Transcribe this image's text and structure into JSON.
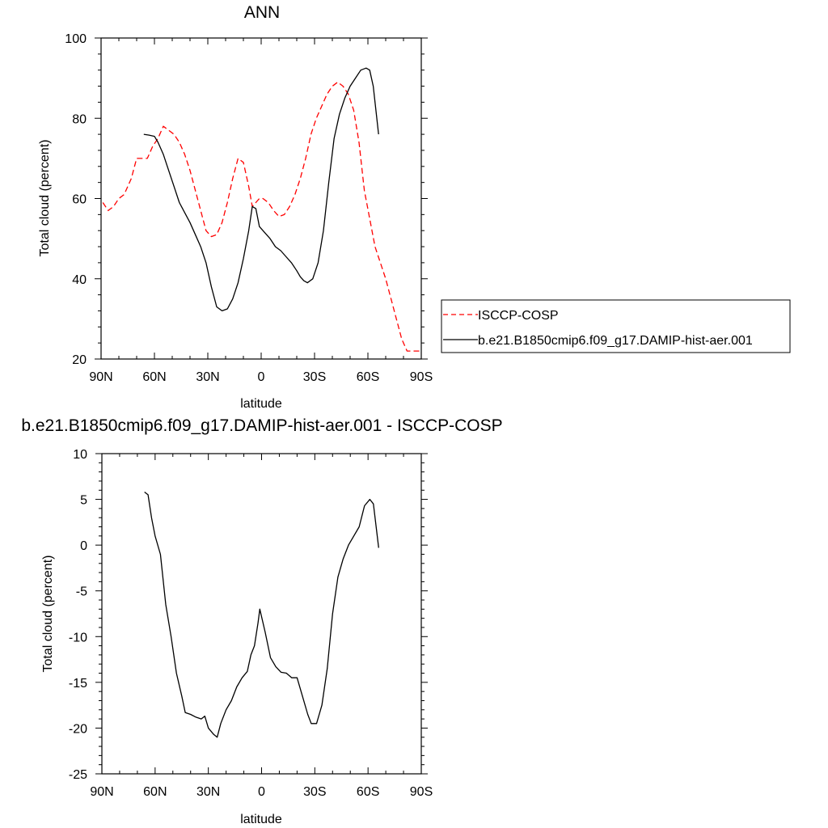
{
  "chart_data": [
    {
      "type": "line",
      "title": "ANN",
      "xlabel": "latitude",
      "ylabel": "Total cloud (percent)",
      "xlim": [
        90,
        -90
      ],
      "ylim": [
        20,
        100
      ],
      "x_ticks": [
        90,
        60,
        30,
        0,
        -30,
        -60,
        -90
      ],
      "x_tick_labels": [
        "90N",
        "60N",
        "30N",
        "0",
        "30S",
        "60S",
        "90S"
      ],
      "y_ticks": [
        20,
        40,
        60,
        80,
        100
      ],
      "y_tick_labels": [
        "20",
        "40",
        "60",
        "80",
        "100"
      ],
      "legend_position": "right",
      "series": [
        {
          "name": "ISCCP-COSP",
          "color": "#ff0000",
          "dash": "dashed",
          "x": [
            89,
            86,
            83,
            80,
            77,
            73,
            70,
            67,
            64,
            61,
            58,
            55,
            52,
            49,
            46,
            43,
            40,
            37,
            34,
            31,
            28,
            25,
            22,
            19,
            16,
            13,
            10,
            7,
            5,
            3,
            1,
            -1,
            -4,
            -7,
            -10,
            -13,
            -16,
            -19,
            -22,
            -25,
            -28,
            -31,
            -34,
            -37,
            -40,
            -43,
            -46,
            -49,
            -52,
            -55,
            -58,
            -61,
            -64,
            -67,
            -70,
            -73,
            -76,
            -79,
            -82,
            -85,
            -88,
            -90
          ],
          "y": [
            59,
            57,
            58,
            60,
            61,
            65,
            70,
            70,
            70,
            73,
            75,
            78,
            77,
            76,
            74,
            71,
            67,
            62,
            57,
            52,
            50.5,
            51,
            54,
            59,
            65,
            70,
            69,
            63,
            58,
            59,
            60,
            60,
            59,
            57,
            55.5,
            56,
            58,
            61,
            65,
            70,
            76,
            80,
            83,
            86,
            88,
            89,
            88,
            86,
            82,
            74,
            62,
            55,
            48,
            44,
            40,
            35,
            30,
            25,
            22,
            22,
            22,
            22
          ]
        },
        {
          "name": "b.e21.B1850cmip6.f09_g17.DAMIP-hist-aer.001",
          "color": "#000000",
          "dash": "solid",
          "x": [
            66,
            63,
            60,
            58,
            55,
            52,
            49,
            46,
            43,
            40,
            37,
            34,
            31,
            28,
            25,
            22,
            19,
            16,
            13,
            10,
            7,
            5,
            3,
            1,
            -2,
            -5,
            -8,
            -11,
            -14,
            -17,
            -20,
            -22,
            -24,
            -26,
            -29,
            -32,
            -35,
            -38,
            -41,
            -44,
            -47,
            -50,
            -53,
            -56,
            -59,
            -61,
            -63,
            -66
          ],
          "y": [
            76,
            75.8,
            75.5,
            74,
            71,
            67,
            63,
            59,
            56.5,
            54,
            51,
            48,
            44,
            38,
            33,
            32,
            32.5,
            35,
            39,
            45,
            52,
            58,
            57.5,
            53,
            51.5,
            50,
            48,
            47,
            45.5,
            44,
            42,
            40.5,
            39.5,
            39,
            40,
            44,
            52,
            64,
            75,
            81,
            85,
            88,
            90,
            92,
            92.5,
            92,
            88,
            76
          ]
        }
      ]
    },
    {
      "type": "line",
      "title": "b.e21.B1850cmip6.f09_g17.DAMIP-hist-aer.001 - ISCCP-COSP",
      "xlabel": "latitude",
      "ylabel": "Total cloud (percent)",
      "xlim": [
        90,
        -90
      ],
      "ylim": [
        -25,
        10
      ],
      "x_ticks": [
        90,
        60,
        30,
        0,
        -30,
        -60,
        -90
      ],
      "x_tick_labels": [
        "90N",
        "60N",
        "30N",
        "0",
        "30S",
        "60S",
        "90S"
      ],
      "y_ticks": [
        -25,
        -20,
        -15,
        -10,
        -5,
        0,
        5,
        10
      ],
      "y_tick_labels": [
        "-25",
        "-20",
        "-15",
        "-10",
        "-5",
        "0",
        "5",
        "10"
      ],
      "series": [
        {
          "color": "#000000",
          "dash": "solid",
          "x": [
            66,
            64,
            62,
            60,
            57,
            54,
            51,
            48,
            45,
            43,
            40,
            37,
            34,
            32,
            30,
            27,
            25,
            23,
            20,
            17,
            14,
            11,
            8,
            6,
            4,
            2,
            1,
            -2,
            -5,
            -8,
            -11,
            -14,
            -17,
            -20,
            -23,
            -26,
            -28,
            -31,
            -34,
            -37,
            -40,
            -43,
            -46,
            -49,
            -52,
            -55,
            -58,
            -61,
            -63,
            -66
          ],
          "y": [
            5.8,
            5.5,
            3.0,
            1.0,
            -1.0,
            -6.5,
            -10.0,
            -14.0,
            -16.5,
            -18.3,
            -18.5,
            -18.8,
            -19.0,
            -18.7,
            -20.0,
            -20.7,
            -21.0,
            -19.5,
            -18.0,
            -17.0,
            -15.5,
            -14.5,
            -13.8,
            -12.0,
            -11.0,
            -8.5,
            -7.0,
            -9.5,
            -12.3,
            -13.3,
            -13.9,
            -14.0,
            -14.5,
            -14.5,
            -16.5,
            -18.5,
            -19.5,
            -19.5,
            -17.5,
            -13.5,
            -7.5,
            -3.5,
            -1.5,
            0.0,
            1.0,
            2.0,
            4.3,
            5.0,
            4.5,
            -0.3
          ]
        }
      ]
    }
  ]
}
